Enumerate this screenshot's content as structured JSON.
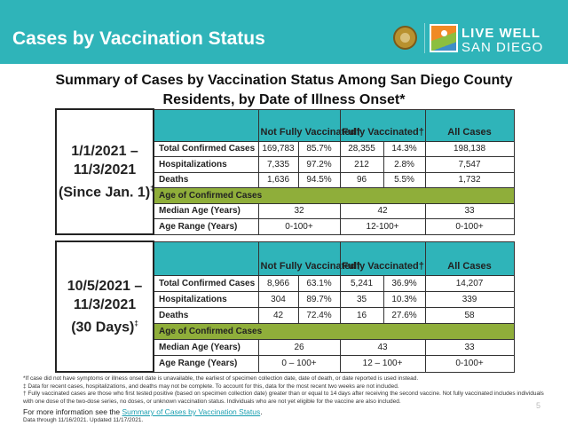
{
  "header": {
    "title": "Cases by Vaccination Status",
    "logo_line1": "LIVE WELL",
    "logo_line2": "SAN DIEGO"
  },
  "heading": "Summary of Cases by Vaccination Status Among San Diego County Residents, by Date of Illness Onset*",
  "tables": [
    {
      "period": [
        "1/1/2021 –",
        "11/3/2021",
        "(Since Jan. 1)",
        "‡"
      ],
      "columns": [
        "Not Fully Vaccinated†",
        "Fully Vaccinated†",
        "All Cases"
      ],
      "rows": [
        [
          "Total Confirmed Cases",
          "169,783",
          "85.7%",
          "28,355",
          "14.3%",
          "198,138"
        ],
        [
          "Hospitalizations",
          "7,335",
          "97.2%",
          "212",
          "2.8%",
          "7,547"
        ],
        [
          "Deaths",
          "1,636",
          "94.5%",
          "96",
          "5.5%",
          "1,732"
        ]
      ],
      "age_header": "Age of Confirmed Cases",
      "age_rows": [
        [
          "Median Age (Years)",
          "32",
          "42",
          "33"
        ],
        [
          "Age Range (Years)",
          "0-100+",
          "12-100+",
          "0-100+"
        ]
      ]
    },
    {
      "period": [
        "10/5/2021 –",
        "11/3/2021",
        "(30 Days)",
        "‡"
      ],
      "columns": [
        "Not Fully Vaccinated†",
        "Fully Vaccinated†",
        "All Cases"
      ],
      "rows": [
        [
          "Total Confirmed Cases",
          "8,966",
          "63.1%",
          "5,241",
          "36.9%",
          "14,207"
        ],
        [
          "Hospitalizations",
          "304",
          "89.7%",
          "35",
          "10.3%",
          "339"
        ],
        [
          "Deaths",
          "42",
          "72.4%",
          "16",
          "27.6%",
          "58"
        ]
      ],
      "age_header": "Age of Confirmed Cases",
      "age_rows": [
        [
          "Median Age (Years)",
          "26",
          "43",
          "33"
        ],
        [
          "Age Range (Years)",
          "0 – 100+",
          "12 – 100+",
          "0-100+"
        ]
      ]
    }
  ],
  "footnotes": [
    "*If case did not have symptoms or illness onset date is unavailable, the earliest of specimen collection date, date of death, or date reported is used instead.",
    "‡ Data for recent cases, hospitalizations, and deaths may not be complete. To account for this, data for the most recent two weeks are not included.",
    "† Fully vaccinated cases are those who first tested positive (based on specimen collection date) greater than or equal to 14 days after receiving the second vaccine. Not fully vaccinated includes individuals with one dose of the two-dose series, no doses, or unknown vaccination status. Individuals who are not yet eligible for the vaccine are also included."
  ],
  "more_info": {
    "prefix": "For more information see the ",
    "link": "Summary of Cases by Vaccination Status",
    "suffix": "."
  },
  "updated": "Data through 11/16/2021. Updated 11/17/2021.",
  "page_number": "5"
}
